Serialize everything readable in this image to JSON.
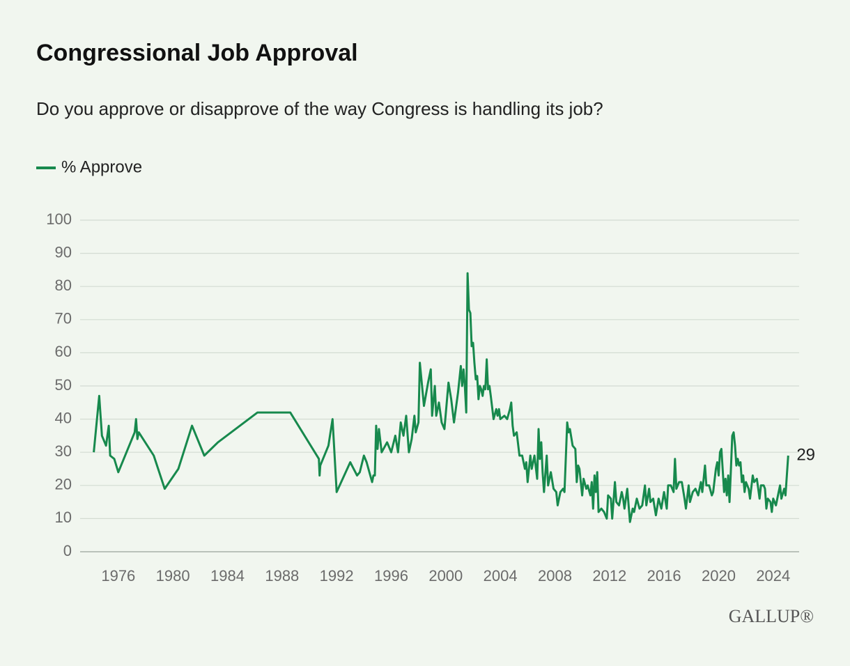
{
  "chart_data": {
    "type": "line",
    "title": "Congressional Job Approval",
    "subtitle": "Do you approve or disapprove of the way Congress is handling its job?",
    "source": "GALLUP®",
    "legend": "top-left",
    "grid": true,
    "xlim": [
      1973.2,
      2025.9
    ],
    "xticks": [
      1976,
      1980,
      1984,
      1988,
      1992,
      1996,
      2000,
      2004,
      2008,
      2012,
      2016,
      2020,
      2024
    ],
    "ylim": [
      0,
      100
    ],
    "yticks": [
      0,
      10,
      20,
      30,
      40,
      50,
      60,
      70,
      80,
      90,
      100
    ],
    "x": [
      1974.2,
      1974.6,
      1974.8,
      1975.1,
      1975.3,
      1975.4,
      1975.7,
      1976.0,
      1977.2,
      1977.3,
      1977.4,
      1977.5,
      1978.6,
      1979.4,
      1980.4,
      1981.4,
      1982.3,
      1983.3,
      1986.2,
      1988.6,
      1990.7,
      1990.75,
      1990.8,
      1991.4,
      1991.7,
      1992.0,
      1993.0,
      1993.5,
      1993.7,
      1994.0,
      1994.2,
      1994.6,
      1994.7,
      1994.8,
      1994.9,
      1995.0,
      1995.1,
      1995.3,
      1995.7,
      1996.0,
      1996.3,
      1996.5,
      1996.7,
      1996.9,
      1997.1,
      1997.3,
      1997.5,
      1997.7,
      1997.8,
      1998.0,
      1998.1,
      1998.4,
      1998.7,
      1998.9,
      1999.0,
      1999.2,
      1999.3,
      1999.5,
      1999.7,
      1999.9,
      2000.2,
      2000.4,
      2000.6,
      2000.9,
      2001.1,
      2001.2,
      2001.3,
      2001.4,
      2001.5,
      2001.6,
      2001.7,
      2001.8,
      2001.9,
      2002.0,
      2002.1,
      2002.2,
      2002.3,
      2002.4,
      2002.5,
      2002.6,
      2002.7,
      2002.8,
      2002.9,
      2003.0,
      2003.1,
      2003.2,
      2003.3,
      2003.5,
      2003.7,
      2003.8,
      2003.9,
      2004.0,
      2004.3,
      2004.5,
      2004.7,
      2004.8,
      2004.9,
      2005.0,
      2005.2,
      2005.4,
      2005.6,
      2005.8,
      2005.9,
      2006.0,
      2006.2,
      2006.3,
      2006.5,
      2006.7,
      2006.8,
      2006.9,
      2007.0,
      2007.1,
      2007.2,
      2007.4,
      2007.5,
      2007.7,
      2007.9,
      2008.1,
      2008.2,
      2008.4,
      2008.6,
      2008.7,
      2008.9,
      2009.0,
      2009.1,
      2009.3,
      2009.5,
      2009.6,
      2009.7,
      2009.8,
      2010.0,
      2010.1,
      2010.3,
      2010.4,
      2010.6,
      2010.7,
      2010.8,
      2010.9,
      2011.0,
      2011.1,
      2011.2,
      2011.4,
      2011.6,
      2011.8,
      2011.9,
      2012.1,
      2012.2,
      2012.4,
      2012.5,
      2012.7,
      2012.9,
      2013.0,
      2013.1,
      2013.3,
      2013.5,
      2013.7,
      2013.8,
      2014.0,
      2014.2,
      2014.4,
      2014.6,
      2014.7,
      2014.9,
      2015.0,
      2015.2,
      2015.4,
      2015.6,
      2015.8,
      2016.0,
      2016.2,
      2016.3,
      2016.5,
      2016.7,
      2016.8,
      2016.9,
      2017.1,
      2017.3,
      2017.5,
      2017.6,
      2017.8,
      2017.9,
      2018.1,
      2018.3,
      2018.5,
      2018.7,
      2018.8,
      2019.0,
      2019.1,
      2019.3,
      2019.5,
      2019.6,
      2019.8,
      2019.9,
      2020.0,
      2020.1,
      2020.2,
      2020.4,
      2020.5,
      2020.6,
      2020.7,
      2020.8,
      2020.9,
      2021.0,
      2021.1,
      2021.2,
      2021.3,
      2021.4,
      2021.5,
      2021.6,
      2021.7,
      2021.8,
      2021.9,
      2022.0,
      2022.2,
      2022.3,
      2022.5,
      2022.6,
      2022.8,
      2022.9,
      2023.0,
      2023.1,
      2023.3,
      2023.4,
      2023.5,
      2023.6,
      2023.8,
      2023.9,
      2024.0,
      2024.2,
      2024.4,
      2024.5,
      2024.6,
      2024.8,
      2024.9,
      2025.1
    ],
    "series": [
      {
        "name": "% Approve",
        "color": "#17894d",
        "values": [
          30,
          47,
          35,
          32,
          38,
          29,
          28,
          24,
          36,
          40,
          34,
          36,
          29,
          19,
          25,
          38,
          29,
          33,
          42,
          42,
          28,
          23,
          26,
          32,
          40,
          18,
          27,
          23,
          24,
          29,
          27,
          21,
          23,
          23,
          38,
          31,
          37,
          30,
          33,
          30,
          35,
          30,
          39,
          35,
          41,
          30,
          34,
          41,
          36,
          39,
          57,
          44,
          51,
          55,
          41,
          50,
          41,
          45,
          39,
          37,
          51,
          46,
          39,
          48,
          56,
          50,
          55,
          50,
          42,
          84,
          73,
          72,
          62,
          63,
          57,
          52,
          53,
          46,
          50,
          49,
          47,
          50,
          49,
          58,
          49,
          50,
          47,
          40,
          43,
          41,
          43,
          40,
          41,
          40,
          43,
          45,
          38,
          35,
          36,
          29,
          29,
          25,
          27,
          21,
          29,
          25,
          29,
          22,
          37,
          28,
          33,
          24,
          18,
          29,
          20,
          24,
          19,
          18,
          14,
          18,
          19,
          18,
          39,
          36,
          37,
          32,
          31,
          21,
          26,
          25,
          17,
          22,
          19,
          20,
          17,
          21,
          13,
          23,
          18,
          24,
          12,
          13,
          12,
          10,
          17,
          16,
          10,
          21,
          15,
          14,
          18,
          16,
          13,
          19,
          9,
          13,
          12,
          16,
          13,
          14,
          20,
          14,
          19,
          15,
          16,
          11,
          16,
          13,
          18,
          13,
          20,
          20,
          18,
          28,
          19,
          21,
          21,
          16,
          13,
          20,
          15,
          18,
          19,
          17,
          21,
          18,
          26,
          20,
          20,
          17,
          18,
          25,
          27,
          23,
          30,
          31,
          18,
          22,
          17,
          23,
          15,
          25,
          35,
          36,
          32,
          26,
          28,
          26,
          27,
          21,
          23,
          18,
          21,
          19,
          16,
          23,
          21,
          22,
          19,
          16,
          20,
          20,
          19,
          13,
          16,
          15,
          12,
          16,
          14,
          18,
          20,
          16,
          19,
          17,
          29
        ]
      }
    ]
  }
}
